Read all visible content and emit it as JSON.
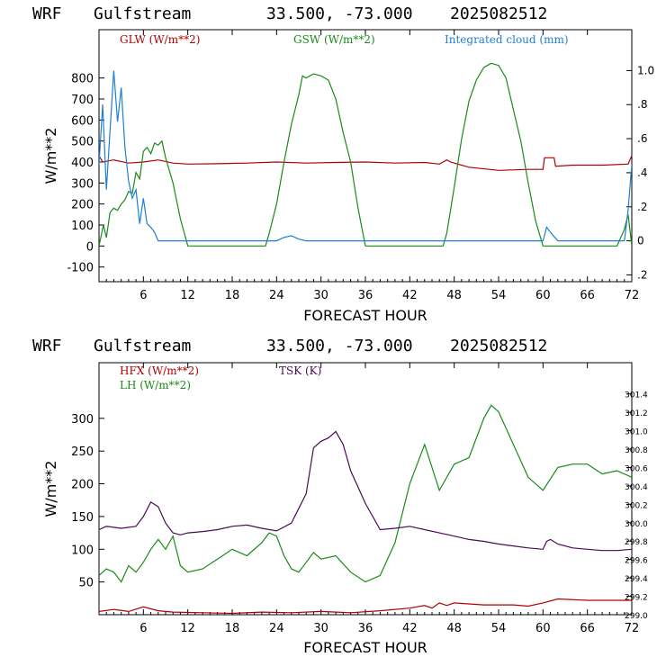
{
  "chart_data": [
    {
      "type": "line",
      "title": {
        "model": "WRF",
        "site": "Gulfstream",
        "coords": "33.500, -73.000",
        "date": "2025082512"
      },
      "xlabel": "FORECAST HOUR",
      "ylabel": "W/m**2",
      "xlim": [
        0,
        72
      ],
      "ylim": [
        -170,
        1030
      ],
      "y2lim": [
        -0.24,
        1.24
      ],
      "xticks": [
        6,
        12,
        18,
        24,
        30,
        36,
        42,
        48,
        54,
        60,
        66,
        72
      ],
      "yticks": [
        -100,
        0,
        100,
        200,
        300,
        400,
        500,
        600,
        700,
        800
      ],
      "y2ticks": [
        -0.2,
        0,
        0.2,
        0.4,
        0.6,
        0.8,
        1.0
      ],
      "y2ticklabels": [
        ".2",
        "0",
        ".2",
        ".4",
        ".6",
        ".8",
        "1.0"
      ],
      "series": [
        {
          "name": "GLW (W/m**2)",
          "color": "#b00000",
          "axis": "left",
          "x": [
            0,
            0.5,
            2,
            4,
            6,
            8,
            10,
            12,
            16,
            20,
            24,
            28,
            32,
            36,
            40,
            44,
            46,
            47,
            47.5,
            48,
            50,
            54,
            58,
            60,
            60.2,
            61.5,
            61.7,
            64,
            68,
            71.5,
            72
          ],
          "y": [
            430,
            400,
            410,
            395,
            400,
            410,
            395,
            390,
            392,
            395,
            400,
            395,
            398,
            400,
            395,
            398,
            390,
            410,
            400,
            395,
            375,
            360,
            365,
            365,
            420,
            420,
            380,
            385,
            385,
            390,
            430
          ]
        },
        {
          "name": "GSW (W/m**2)",
          "color": "#1a8a1a",
          "axis": "left",
          "x": [
            0,
            0.6,
            1,
            1.5,
            2,
            2.5,
            3,
            3.5,
            4,
            4.5,
            5,
            5.5,
            6,
            6.5,
            7,
            7.5,
            8,
            8.5,
            9,
            10,
            11,
            12,
            22.5,
            23,
            24,
            25,
            26,
            27,
            27.5,
            28,
            29,
            30,
            31,
            32,
            33,
            34,
            35,
            36,
            46.5,
            47,
            48,
            49,
            50,
            51,
            52,
            53,
            54,
            55,
            56,
            57,
            58,
            59,
            60,
            70,
            71,
            71.5,
            72
          ],
          "y": [
            0,
            100,
            40,
            160,
            180,
            170,
            200,
            220,
            260,
            250,
            350,
            320,
            450,
            470,
            440,
            490,
            480,
            500,
            420,
            300,
            130,
            0,
            0,
            60,
            200,
            400,
            580,
            720,
            810,
            800,
            820,
            810,
            790,
            700,
            540,
            400,
            180,
            0,
            0,
            60,
            280,
            510,
            690,
            790,
            850,
            870,
            860,
            800,
            650,
            500,
            300,
            120,
            0,
            0,
            80,
            150,
            0
          ]
        },
        {
          "name": "Integrated cloud (mm)",
          "color": "#1e7fd6",
          "axis": "right",
          "x": [
            0,
            0.5,
            1,
            1.5,
            2,
            2.5,
            3,
            3.5,
            4,
            4.5,
            5,
            5.5,
            6,
            6.5,
            7,
            7.5,
            8,
            9,
            24,
            25,
            26,
            27,
            28,
            60,
            60.5,
            61,
            62,
            71,
            71.5,
            72
          ],
          "y": [
            0.45,
            0.8,
            0.3,
            0.65,
            1.0,
            0.7,
            0.9,
            0.55,
            0.35,
            0.25,
            0.3,
            0.1,
            0.25,
            0.1,
            0.08,
            0.05,
            0.0,
            0.0,
            0.0,
            0.02,
            0.03,
            0.01,
            0.0,
            0.0,
            0.08,
            0.05,
            0.0,
            0.0,
            0.18,
            0.45
          ]
        }
      ]
    },
    {
      "type": "line",
      "title": {
        "model": "WRF",
        "site": "Gulfstream",
        "coords": "33.500, -73.000",
        "date": "2025082512"
      },
      "xlabel": "FORECAST HOUR",
      "ylabel": "W/m**2",
      "xlim": [
        0,
        72
      ],
      "ylim": [
        0,
        385
      ],
      "y2lim": [
        299.0,
        301.74
      ],
      "xticks": [
        6,
        12,
        18,
        24,
        30,
        36,
        42,
        48,
        54,
        60,
        66,
        72
      ],
      "yticks": [
        50,
        100,
        150,
        200,
        250,
        300
      ],
      "y2ticks": [
        299.0,
        299.2,
        299.4,
        299.6,
        299.8,
        300.0,
        300.2,
        300.4,
        300.6,
        300.8,
        301.0,
        301.2,
        301.4
      ],
      "y2ticklabels": [
        "299.0",
        "299.2",
        "299.4",
        "299.6",
        "299.8",
        "300.0",
        "300.2",
        "300.4",
        "300.6",
        "300.8",
        "301.0",
        "301.2",
        "301.4"
      ],
      "series": [
        {
          "name": "HFX (W/m**2)",
          "color": "#b00000",
          "axis": "left",
          "x": [
            0,
            2,
            4,
            6,
            8,
            10,
            14,
            18,
            22,
            26,
            30,
            34,
            38,
            42,
            44,
            45,
            46,
            47,
            48,
            52,
            56,
            58,
            60,
            62,
            66,
            72
          ],
          "y": [
            5,
            8,
            5,
            12,
            6,
            4,
            3,
            2,
            4,
            3,
            5,
            3,
            6,
            10,
            14,
            10,
            18,
            14,
            18,
            15,
            15,
            13,
            18,
            24,
            22,
            22
          ]
        },
        {
          "name": "LH  (W/m**2)",
          "color": "#1a8a1a",
          "axis": "left",
          "x": [
            0,
            1,
            2,
            3,
            4,
            5,
            6,
            7,
            8,
            9,
            10,
            11,
            12,
            14,
            16,
            18,
            20,
            22,
            23,
            24,
            25,
            26,
            27,
            28,
            29,
            30,
            32,
            34,
            36,
            38,
            40,
            42,
            44,
            46,
            48,
            50,
            52,
            53,
            54,
            56,
            58,
            60,
            62,
            64,
            66,
            68,
            70,
            72
          ],
          "y": [
            60,
            70,
            65,
            50,
            75,
            65,
            80,
            100,
            115,
            100,
            120,
            75,
            65,
            70,
            85,
            100,
            90,
            110,
            125,
            120,
            90,
            70,
            65,
            80,
            95,
            85,
            90,
            65,
            50,
            60,
            110,
            200,
            260,
            190,
            230,
            240,
            300,
            320,
            310,
            260,
            210,
            190,
            225,
            230,
            230,
            215,
            220,
            210
          ]
        },
        {
          "name": "TSK (K)",
          "color": "#4b0a55",
          "axis": "left",
          "x": [
            0,
            1,
            3,
            5,
            6,
            7,
            8,
            9,
            10,
            11,
            12,
            14,
            16,
            18,
            20,
            22,
            24,
            26,
            28,
            29,
            30,
            31,
            32,
            33,
            34,
            36,
            38,
            40,
            42,
            44,
            46,
            48,
            50,
            52,
            54,
            56,
            58,
            60,
            60.5,
            61,
            62,
            64,
            66,
            68,
            70,
            72
          ],
          "y": [
            130,
            135,
            132,
            135,
            150,
            172,
            165,
            140,
            125,
            122,
            125,
            127,
            130,
            135,
            137,
            132,
            128,
            140,
            185,
            255,
            265,
            270,
            280,
            260,
            220,
            170,
            130,
            132,
            135,
            130,
            125,
            120,
            115,
            112,
            108,
            105,
            102,
            100,
            112,
            115,
            108,
            102,
            100,
            98,
            98,
            100
          ]
        }
      ]
    }
  ]
}
